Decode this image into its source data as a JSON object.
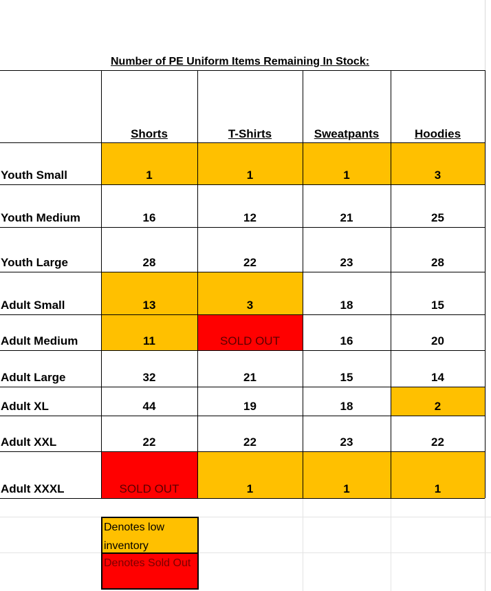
{
  "title": "Number of PE Uniform Items Remaining In Stock:",
  "columns": [
    "Shorts",
    "T-Shirts",
    "Sweatpants",
    "Hoodies"
  ],
  "rows": [
    {
      "label": "Youth Small",
      "values": [
        "1",
        "1",
        "1",
        "3"
      ]
    },
    {
      "label": "Youth Medium",
      "values": [
        "16",
        "12",
        "21",
        "25"
      ]
    },
    {
      "label": "Youth Large",
      "values": [
        "28",
        "22",
        "23",
        "28"
      ]
    },
    {
      "label": "Adult Small",
      "values": [
        "13",
        "3",
        "18",
        "15"
      ]
    },
    {
      "label": "Adult Medium",
      "values": [
        "11",
        "SOLD OUT",
        "16",
        "20"
      ]
    },
    {
      "label": "Adult Large",
      "values": [
        "32",
        "21",
        "15",
        "14"
      ]
    },
    {
      "label": "Adult XL",
      "values": [
        "44",
        "19",
        "18",
        "2"
      ]
    },
    {
      "label": "Adult XXL",
      "values": [
        "22",
        "22",
        "23",
        "22"
      ]
    },
    {
      "label": "Adult XXXL",
      "values": [
        "SOLD OUT",
        "1",
        "1",
        "1"
      ]
    }
  ],
  "legend": {
    "low": "Denotes low inventory",
    "sold": "Denotes Sold Out"
  },
  "colors": {
    "low": "#FFC000",
    "sold": "#FF0000",
    "grid": "#000000",
    "faint_grid": "#d9d9d9"
  }
}
